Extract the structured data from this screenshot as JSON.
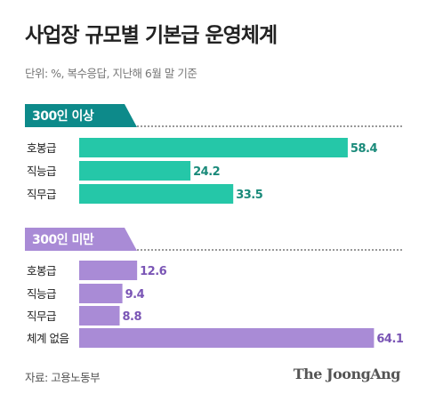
{
  "title": "사업장 규모별 기본급 운영체계",
  "subtitle": "단위: %, 복수응답, 지난해 6월 말 기준",
  "source": "자료: 고용노동부",
  "brand": "The JoongAng",
  "colors": {
    "group1": "#25c7a8",
    "group1_header": "#0d8a8a",
    "group1_value": "#1a8a7a",
    "group2": "#a98bd6",
    "group2_header": "#a98bd6",
    "group2_value": "#7a55b5"
  },
  "chart_data": [
    {
      "type": "bar",
      "title": "300인 이상",
      "categories": [
        "호봉급",
        "직능급",
        "직무급"
      ],
      "values": [
        58.4,
        24.2,
        33.5
      ],
      "xlim": [
        0,
        100
      ]
    },
    {
      "type": "bar",
      "title": "300인 미만",
      "categories": [
        "호봉급",
        "직능급",
        "직무급",
        "체계 없음"
      ],
      "values": [
        12.6,
        9.4,
        8.8,
        64.1
      ],
      "xlim": [
        0,
        100
      ]
    }
  ]
}
